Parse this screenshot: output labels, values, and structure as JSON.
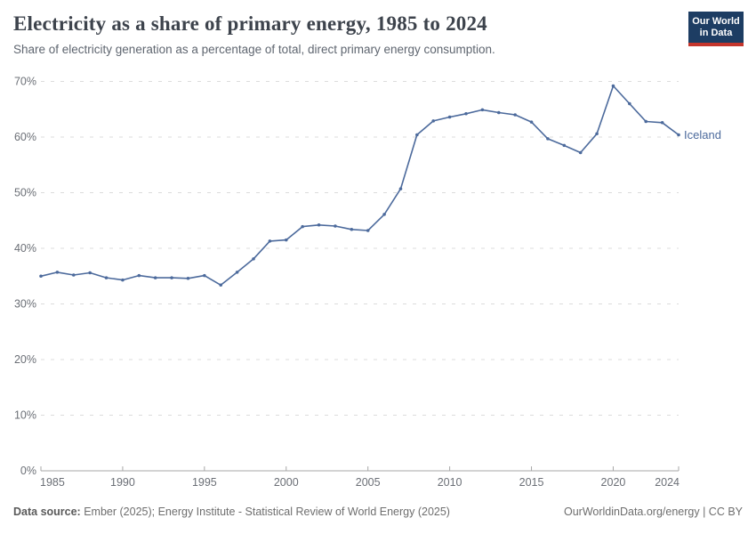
{
  "header": {
    "title": "Electricity as a share of primary energy, 1985 to 2024",
    "subtitle": "Share of electricity generation as a percentage of total, direct primary energy consumption.",
    "logo_line1": "Our World",
    "logo_line2": "in Data"
  },
  "colors": {
    "line": "#4c6a9c",
    "entity_label": "#4c6a9c",
    "gridline": "#dcdcdc",
    "axis": "#a7a7a7",
    "tick_label": "#6b6f76",
    "logo_bg": "#1d3d63",
    "logo_red": "#c4352c"
  },
  "chart_data": {
    "type": "line",
    "title": "Electricity as a share of primary energy, 1985 to 2024",
    "xlabel": "",
    "ylabel": "",
    "xlim": [
      1985,
      2024
    ],
    "ylim": [
      0,
      70
    ],
    "grid": "horizontal-dashed",
    "legend_position": "end-of-line-label",
    "x_ticks": [
      1985,
      1990,
      1995,
      2000,
      2005,
      2010,
      2015,
      2020,
      2024
    ],
    "y_ticks": [
      0,
      10,
      20,
      30,
      40,
      50,
      60,
      70
    ],
    "y_tick_suffix": "%",
    "series": [
      {
        "name": "Iceland",
        "x": [
          1985,
          1986,
          1987,
          1988,
          1989,
          1990,
          1991,
          1992,
          1993,
          1994,
          1995,
          1996,
          1997,
          1998,
          1999,
          2000,
          2001,
          2002,
          2003,
          2004,
          2005,
          2006,
          2007,
          2008,
          2009,
          2010,
          2011,
          2012,
          2013,
          2014,
          2015,
          2016,
          2017,
          2018,
          2019,
          2020,
          2021,
          2022,
          2023,
          2024
        ],
        "values": [
          35.0,
          35.7,
          35.2,
          35.6,
          34.7,
          34.3,
          35.1,
          34.7,
          34.7,
          34.6,
          35.1,
          33.4,
          35.7,
          38.1,
          41.3,
          41.5,
          43.9,
          44.2,
          44.0,
          43.4,
          43.2,
          46.1,
          50.7,
          60.4,
          62.9,
          63.6,
          64.2,
          64.9,
          64.4,
          64.0,
          62.7,
          59.7,
          58.5,
          57.2,
          60.6,
          69.2,
          66.0,
          62.8,
          62.6,
          60.4
        ]
      }
    ]
  },
  "footer": {
    "source_label": "Data source:",
    "source_text": "Ember (2025); Energy Institute - Statistical Review of World Energy (2025)",
    "right_text": "OurWorldinData.org/energy | CC BY"
  }
}
